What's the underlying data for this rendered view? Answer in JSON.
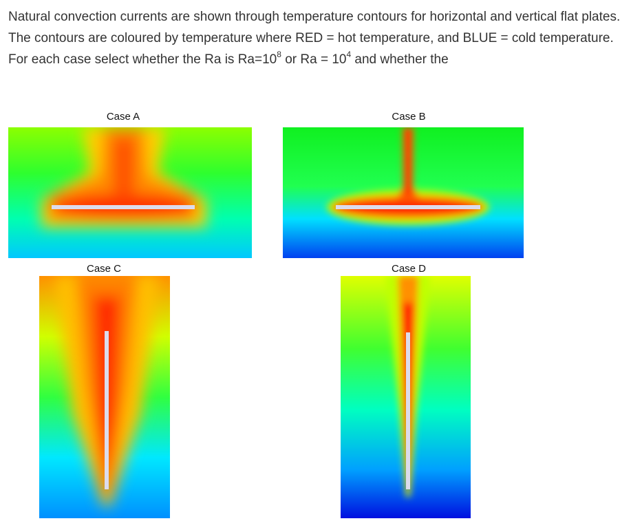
{
  "intro": {
    "text_1": "Natural convection currents are shown through temperature contours for horizontal and vertical flat plates. The contours are coloured by temperature where RED = hot temperature, and BLUE = cold temperature.  For each case select whether the Ra is Ra=10",
    "exponent_1": "8",
    "text_2": " or Ra = 10",
    "exponent_2": "4",
    "text_3": " and whether the"
  },
  "cases": [
    {
      "label": "Case A"
    },
    {
      "label": "Case B"
    },
    {
      "label": "Case C"
    },
    {
      "label": "Case D"
    }
  ]
}
